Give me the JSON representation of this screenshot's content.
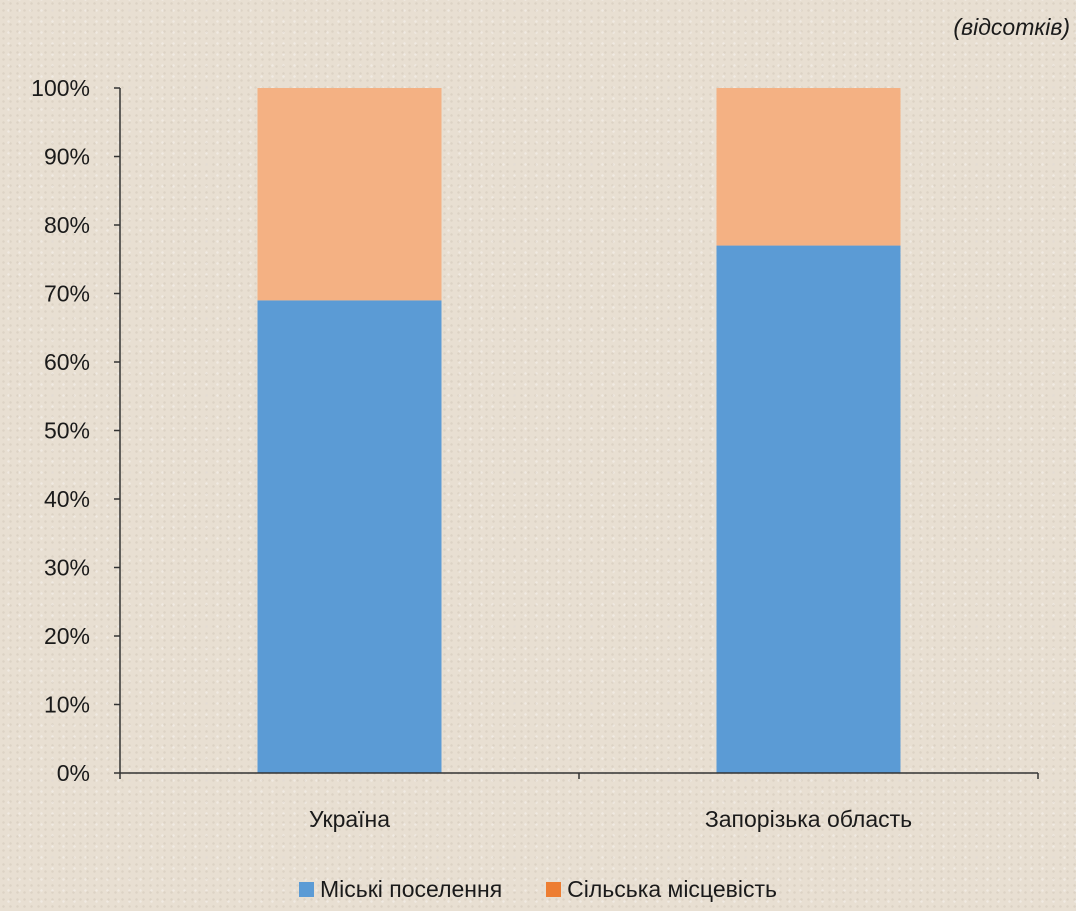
{
  "unit_note": "(відсотків)",
  "chart_data": {
    "type": "bar",
    "stacked": true,
    "categories": [
      "Україна",
      "Запорізька область"
    ],
    "series": [
      {
        "name": "Міські поселення",
        "values": [
          69,
          77
        ],
        "color": "#5b9bd5",
        "legend_color": "#5b9bd5"
      },
      {
        "name": "Сільська місцевість",
        "values": [
          31,
          23
        ],
        "color": "#f4b183",
        "legend_color": "#ed7d31"
      }
    ],
    "ylim": [
      0,
      100
    ],
    "y_ticks": [
      "0%",
      "10%",
      "20%",
      "30%",
      "40%",
      "50%",
      "60%",
      "70%",
      "80%",
      "90%",
      "100%"
    ],
    "grid": false,
    "legend_position": "bottom"
  }
}
